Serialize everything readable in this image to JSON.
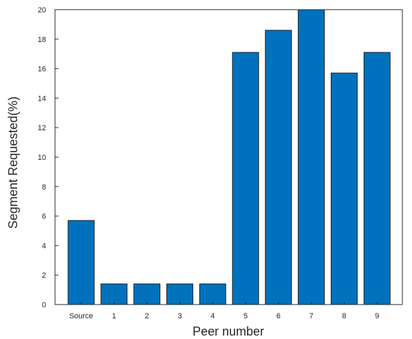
{
  "chart_data": {
    "type": "bar",
    "title": "",
    "xlabel": "Peer number",
    "ylabel": "Segment Requested(%)",
    "categories": [
      "Source",
      "1",
      "2",
      "3",
      "4",
      "5",
      "6",
      "7",
      "8",
      "9"
    ],
    "values": [
      5.7,
      1.4,
      1.4,
      1.4,
      1.4,
      17.1,
      18.6,
      20.0,
      15.7,
      17.1
    ],
    "ylim": [
      0,
      20
    ],
    "yticks": [
      0,
      2,
      4,
      6,
      8,
      10,
      12,
      14,
      16,
      18,
      20
    ],
    "grid": false,
    "bar_color": "#0072BD",
    "bar_edge_color": "#1a1a1a"
  }
}
